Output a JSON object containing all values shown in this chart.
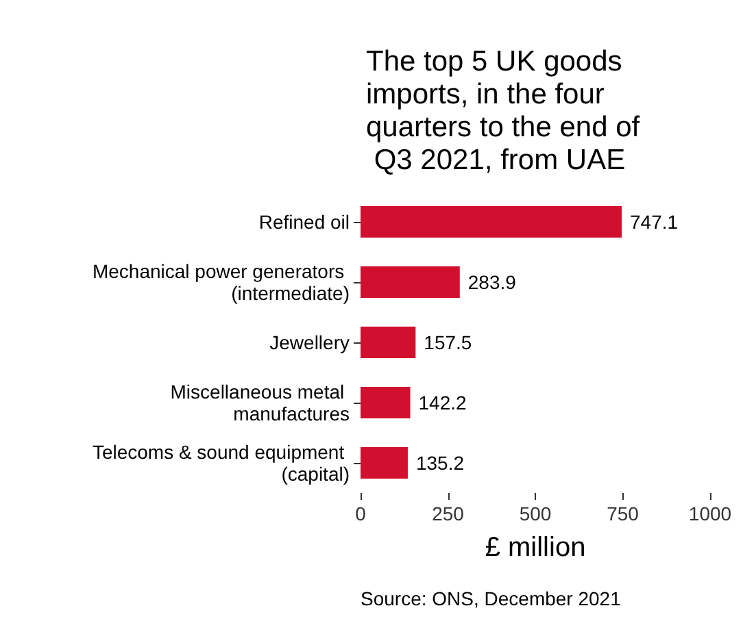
{
  "chart_data": {
    "type": "bar",
    "orientation": "horizontal",
    "title": "The top 5 UK goods imports, in the four quarters to the end of Q3 2021, from UAE",
    "categories": [
      "Refined oil",
      "Mechanical power generators (intermediate)",
      "Jewellery",
      "Miscellaneous metal manufactures",
      "Telecoms & sound equipment (capital)"
    ],
    "values": [
      747.1,
      283.9,
      157.5,
      142.2,
      135.2
    ],
    "color": "#d0102e",
    "data_labels": true,
    "xlim": [
      0,
      1000
    ],
    "xticks": [
      0,
      250,
      500,
      750,
      1000
    ],
    "xlabel": "£ million",
    "grid": false,
    "annotations": [
      "Source: ONS, December 2021"
    ]
  }
}
